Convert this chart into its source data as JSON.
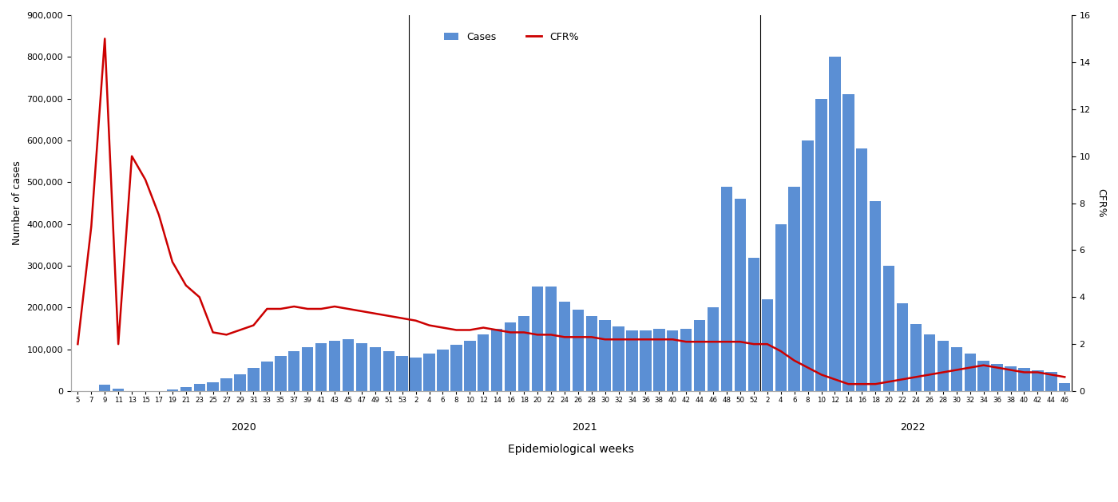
{
  "bar_color": "#5b8fd4",
  "line_color": "#cc0000",
  "ylabel_left": "Number of cases",
  "ylabel_right": "CFR%",
  "xlabel": "Epidemiological weeks",
  "ylim_left": [
    0,
    900000
  ],
  "ylim_right": [
    0,
    16
  ],
  "yticks_left": [
    0,
    100000,
    200000,
    300000,
    400000,
    500000,
    600000,
    700000,
    800000,
    900000
  ],
  "ytick_labels_left": [
    "0",
    "100,000",
    "200,000",
    "300,000",
    "400,000",
    "500,000",
    "600,000",
    "700,000",
    "800,000",
    "900,000"
  ],
  "yticks_right": [
    0,
    2,
    4,
    6,
    8,
    10,
    12,
    14,
    16
  ],
  "weeks_2020": [
    5,
    7,
    9,
    11,
    13,
    15,
    17,
    19,
    21,
    23,
    25,
    27,
    29,
    31,
    33,
    35,
    37,
    39,
    41,
    43,
    45,
    47,
    49,
    51,
    53
  ],
  "weeks_2021": [
    2,
    4,
    6,
    8,
    10,
    12,
    14,
    16,
    18,
    20,
    22,
    24,
    26,
    28,
    30,
    32,
    34,
    36,
    38,
    40,
    42,
    44,
    46,
    48,
    50,
    52
  ],
  "weeks_2022": [
    2,
    4,
    6,
    8,
    10,
    12,
    14,
    16,
    18,
    20,
    22,
    24,
    26,
    28,
    30,
    32,
    34,
    36,
    38,
    40,
    42,
    44,
    46
  ],
  "cases_2020": [
    0,
    500,
    15000,
    5000,
    1000,
    500,
    1000,
    3000,
    10000,
    18000,
    22000,
    30000,
    40000,
    55000,
    70000,
    85000,
    95000,
    105000,
    115000,
    120000,
    125000,
    115000,
    105000,
    95000,
    85000
  ],
  "cases_2021": [
    80000,
    90000,
    100000,
    110000,
    120000,
    135000,
    150000,
    165000,
    180000,
    250000,
    250000,
    215000,
    195000,
    180000,
    170000,
    155000,
    145000,
    145000,
    150000,
    145000,
    150000,
    170000,
    200000,
    490000,
    460000,
    320000
  ],
  "cases_2022": [
    220000,
    400000,
    490000,
    600000,
    700000,
    800000,
    710000,
    580000,
    455000,
    300000,
    210000,
    160000,
    135000,
    120000,
    105000,
    90000,
    72000,
    65000,
    60000,
    55000,
    50000,
    45000,
    20000
  ],
  "cfr_2020": [
    2.0,
    7.0,
    15.0,
    2.0,
    10.0,
    9.0,
    7.5,
    5.5,
    4.5,
    4.0,
    2.5,
    2.4,
    2.6,
    2.8,
    3.5,
    3.5,
    3.6,
    3.5,
    3.5,
    3.6,
    3.5,
    3.4,
    3.3,
    3.2,
    3.1
  ],
  "cfr_2021": [
    3.0,
    2.8,
    2.7,
    2.6,
    2.6,
    2.7,
    2.6,
    2.5,
    2.5,
    2.4,
    2.4,
    2.3,
    2.3,
    2.3,
    2.2,
    2.2,
    2.2,
    2.2,
    2.2,
    2.2,
    2.1,
    2.1,
    2.1,
    2.1,
    2.1,
    2.0
  ],
  "cfr_2022": [
    2.0,
    1.7,
    1.3,
    1.0,
    0.7,
    0.5,
    0.3,
    0.3,
    0.3,
    0.4,
    0.5,
    0.6,
    0.7,
    0.8,
    0.9,
    1.0,
    1.1,
    1.0,
    0.9,
    0.8,
    0.8,
    0.7,
    0.6
  ],
  "legend_cases_label": "Cases",
  "legend_cfr_label": "CFR%"
}
